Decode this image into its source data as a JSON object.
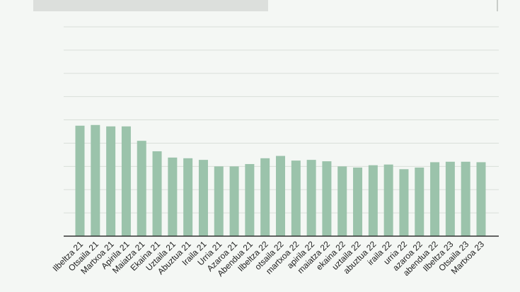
{
  "chart_data": {
    "type": "bar",
    "categories": [
      "Ilbeltza 21",
      "Otsaila 21",
      "Martxoa 21",
      "Apirila 21",
      "Maiatza 21",
      "Ekaina 21",
      "Uztaila 21",
      "Abuztua 21",
      "Iraila 21",
      "Urria 21",
      "Azaroa 21",
      "Abendua 21",
      "Ilbeltza 22",
      "otsaila 22",
      "martxoa 22",
      "apirila 22",
      "maiatza 22",
      "ekaina 22",
      "uztaila 22",
      "abuztua 22",
      "iraila 22",
      "urria 22",
      "azaroa 22",
      "abendua 22",
      "Ilbeltza 23",
      "Otsaila 23",
      "Martxoa 23"
    ],
    "values": [
      4.75,
      4.78,
      4.72,
      4.72,
      4.1,
      3.65,
      3.38,
      3.35,
      3.28,
      3.0,
      3.0,
      3.1,
      3.35,
      3.45,
      3.25,
      3.28,
      3.22,
      3.0,
      2.95,
      3.05,
      3.08,
      2.88,
      2.95,
      3.18,
      3.2,
      3.2,
      3.18
    ],
    "ylim": [
      0,
      9
    ],
    "grid": true,
    "bar_color": "#9bc3ab",
    "grid_color": "#d9dfd9",
    "axis_color": "#333333"
  }
}
